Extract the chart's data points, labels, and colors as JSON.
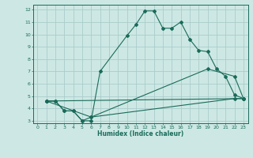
{
  "xlabel": "Humidex (Indice chaleur)",
  "bg_color": "#cde8e4",
  "grid_color": "#aacccc",
  "line_color": "#1a6b5a",
  "xlim": [
    -0.5,
    23.5
  ],
  "ylim": [
    2.8,
    12.4
  ],
  "xticks": [
    0,
    1,
    2,
    3,
    4,
    5,
    6,
    7,
    8,
    9,
    10,
    11,
    12,
    13,
    14,
    15,
    16,
    17,
    18,
    19,
    20,
    21,
    22,
    23
  ],
  "yticks": [
    3,
    4,
    5,
    6,
    7,
    8,
    9,
    10,
    11,
    12
  ],
  "curves": [
    {
      "x": [
        1,
        2,
        3,
        4,
        5,
        6,
        7,
        10,
        11,
        12,
        13,
        14,
        15,
        16,
        17,
        18,
        19,
        20,
        21,
        22,
        23
      ],
      "y": [
        4.6,
        4.6,
        3.8,
        3.8,
        3.0,
        3.0,
        7.0,
        9.9,
        10.8,
        11.9,
        11.9,
        10.5,
        10.5,
        11.0,
        9.6,
        8.7,
        8.6,
        7.2,
        6.6,
        5.1,
        4.8
      ]
    },
    {
      "x": [
        1,
        2,
        3,
        4,
        5,
        6,
        22,
        23
      ],
      "y": [
        4.6,
        4.6,
        3.8,
        3.8,
        3.0,
        3.3,
        4.8,
        4.8
      ]
    },
    {
      "x": [
        1,
        6,
        19,
        22,
        23
      ],
      "y": [
        4.6,
        3.3,
        7.2,
        6.6,
        4.8
      ]
    },
    {
      "x": [
        1,
        23
      ],
      "y": [
        4.6,
        4.8
      ]
    }
  ]
}
